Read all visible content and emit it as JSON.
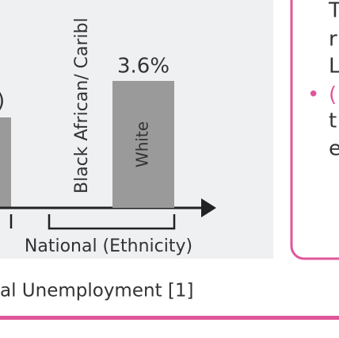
{
  "chart_data": {
    "type": "bar",
    "categories": [
      "Black African/ Caribl",
      "White"
    ],
    "values": [
      null,
      3.6
    ],
    "value_labels": [
      null,
      "3.6%"
    ],
    "color": "#9a9a9a",
    "x_label": "National (Ethnicity)",
    "label_fragment": ")"
  },
  "caption": "al Unemployment [1]",
  "side_panel": {
    "lines": [
      "T",
      "r",
      "L",
      "(",
      "t",
      "e"
    ],
    "bullet": "•"
  }
}
